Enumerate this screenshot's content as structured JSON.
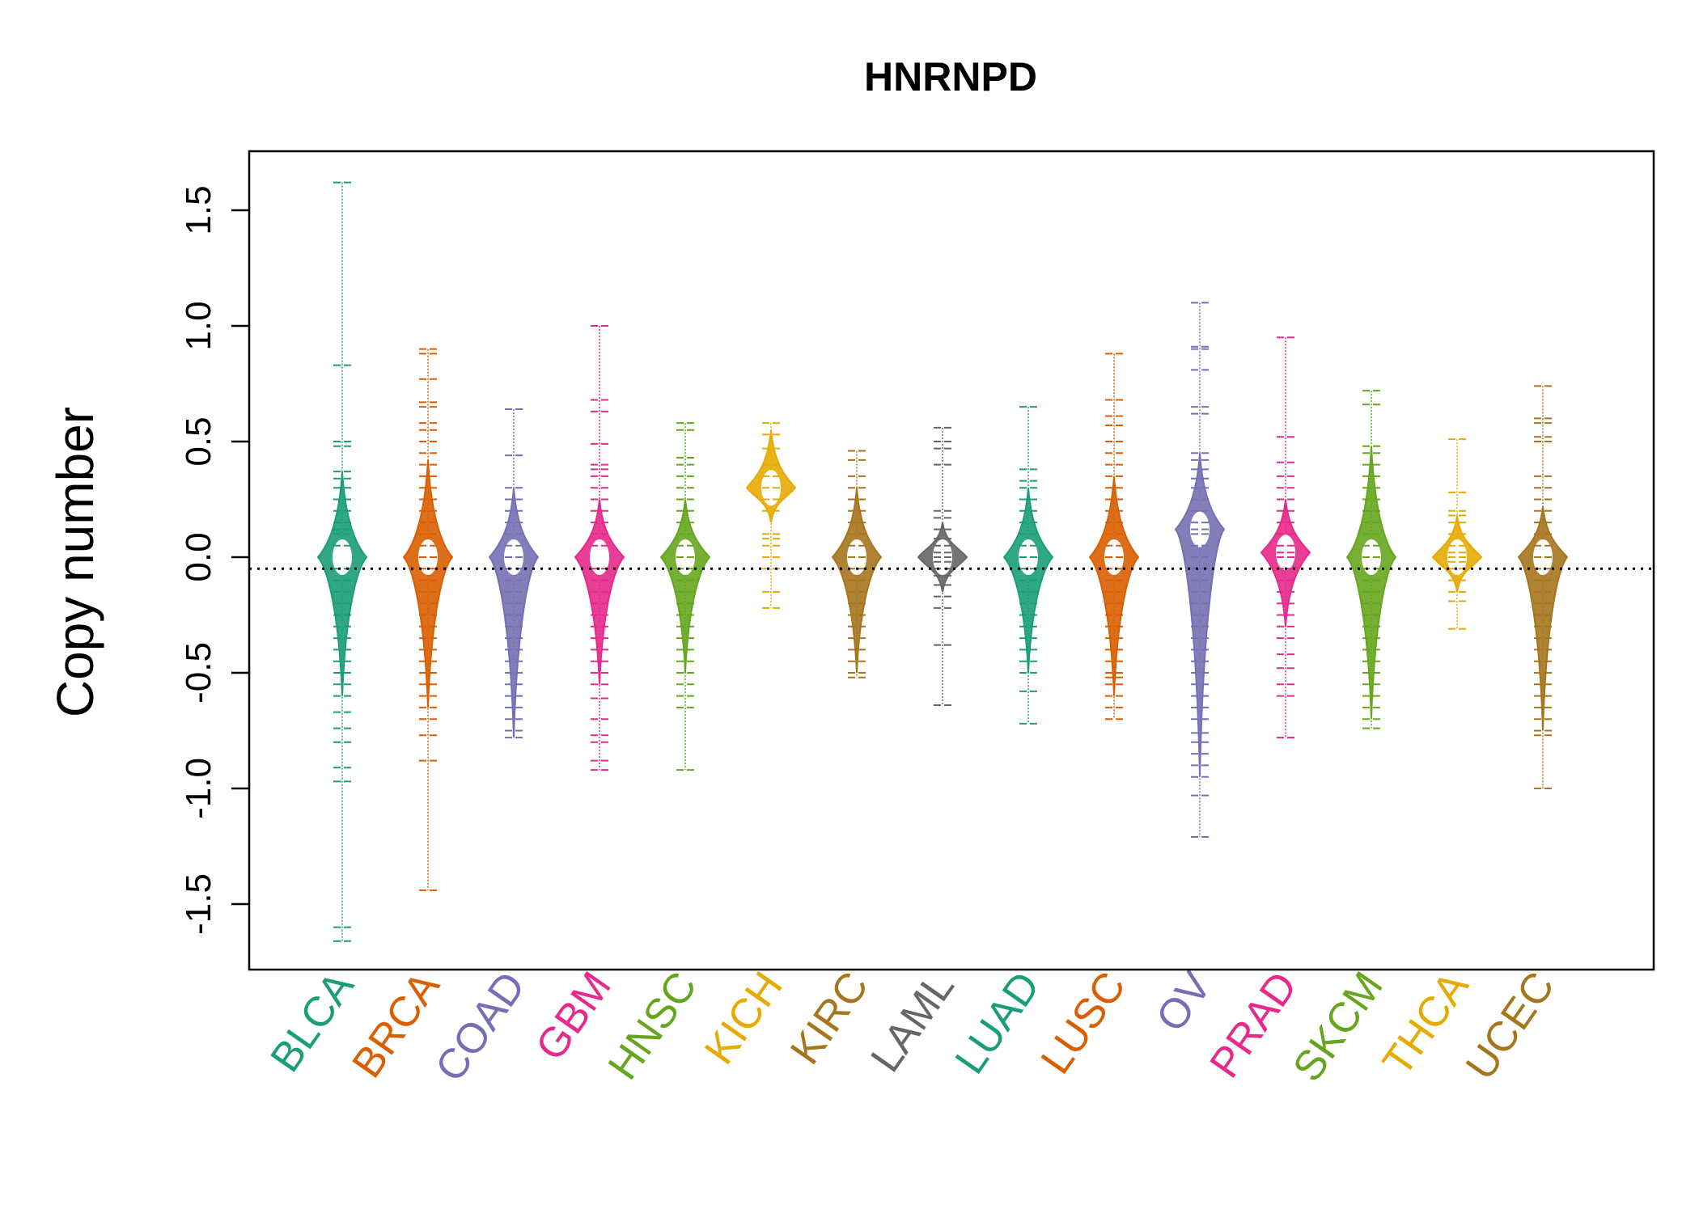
{
  "chart_data": {
    "type": "violin",
    "title": "HNRNPD",
    "xlabel": "",
    "ylabel": "Copy number",
    "ylim": [
      -1.78,
      1.75
    ],
    "yticks": [
      -1.5,
      -1.0,
      -0.5,
      0.0,
      0.5,
      1.0,
      1.5
    ],
    "ytick_labels": [
      "-1.5",
      "-1.0",
      "-0.5",
      "0.0",
      "0.5",
      "1.0",
      "1.5"
    ],
    "reference_line": -0.05,
    "grid": false,
    "legend": "none",
    "categories": [
      "BLCA",
      "BRCA",
      "COAD",
      "GBM",
      "HNSC",
      "KICH",
      "KIRC",
      "LAML",
      "LUAD",
      "LUSC",
      "OV",
      "PRAD",
      "SKCM",
      "THCA",
      "UCEC"
    ],
    "series": [
      {
        "category": "BLCA",
        "color": "#1b9e77",
        "max": 1.62,
        "min": -1.66,
        "body_top": 0.37,
        "body_bottom": -0.6,
        "center": 0.0,
        "points": [
          1.62,
          0.83,
          0.5,
          0.48,
          0.37,
          0.34,
          0.3,
          0.25,
          0.2,
          0.15,
          0.12,
          0.1,
          0.05,
          -0.05,
          -0.1,
          -0.15,
          -0.2,
          -0.25,
          -0.3,
          -0.35,
          -0.4,
          -0.45,
          -0.5,
          -0.55,
          -0.6,
          -0.67,
          -0.74,
          -0.8,
          -0.91,
          -0.97,
          -1.6,
          -1.66
        ]
      },
      {
        "category": "BRCA",
        "color": "#d95f02",
        "max": 0.9,
        "min": -1.44,
        "body_top": 0.42,
        "body_bottom": -0.65,
        "center": 0.0,
        "points": [
          0.9,
          0.88,
          0.77,
          0.67,
          0.65,
          0.58,
          0.55,
          0.5,
          0.45,
          0.4,
          0.35,
          0.3,
          0.25,
          0.2,
          0.15,
          0.1,
          0.05,
          0.0,
          -0.05,
          -0.1,
          -0.15,
          -0.2,
          -0.25,
          -0.3,
          -0.35,
          -0.4,
          -0.45,
          -0.5,
          -0.55,
          -0.6,
          -0.65,
          -0.7,
          -0.77,
          -0.88,
          -1.44
        ]
      },
      {
        "category": "COAD",
        "color": "#7570b3",
        "max": 0.64,
        "min": -0.78,
        "body_top": 0.3,
        "body_bottom": -0.78,
        "center": 0.0,
        "points": [
          0.64,
          0.44,
          0.3,
          0.25,
          0.2,
          0.15,
          0.1,
          0.05,
          0.0,
          -0.05,
          -0.1,
          -0.15,
          -0.2,
          -0.25,
          -0.3,
          -0.35,
          -0.4,
          -0.45,
          -0.5,
          -0.55,
          -0.6,
          -0.65,
          -0.7,
          -0.75,
          -0.78
        ]
      },
      {
        "category": "GBM",
        "color": "#e7298a",
        "max": 1.0,
        "min": -0.92,
        "body_top": 0.25,
        "body_bottom": -0.55,
        "center": 0.0,
        "points": [
          1.0,
          0.68,
          0.63,
          0.49,
          0.4,
          0.38,
          0.35,
          0.3,
          0.25,
          0.2,
          0.15,
          0.1,
          0.05,
          -0.05,
          -0.1,
          -0.15,
          -0.2,
          -0.25,
          -0.3,
          -0.35,
          -0.4,
          -0.45,
          -0.5,
          -0.55,
          -0.61,
          -0.7,
          -0.77,
          -0.8,
          -0.88,
          -0.92
        ]
      },
      {
        "category": "HNSC",
        "color": "#66a61e",
        "max": 0.58,
        "min": -0.92,
        "body_top": 0.25,
        "body_bottom": -0.5,
        "center": 0.0,
        "points": [
          0.58,
          0.55,
          0.43,
          0.4,
          0.35,
          0.3,
          0.25,
          0.2,
          0.15,
          0.1,
          0.05,
          0.0,
          -0.05,
          -0.1,
          -0.15,
          -0.2,
          -0.25,
          -0.3,
          -0.35,
          -0.4,
          -0.45,
          -0.5,
          -0.55,
          -0.6,
          -0.65,
          -0.92
        ]
      },
      {
        "category": "KICH",
        "color": "#e6ab02",
        "max": 0.58,
        "min": -0.22,
        "body_top": 0.55,
        "body_bottom": 0.15,
        "center": 0.3,
        "points": [
          0.58,
          0.53,
          0.47,
          0.4,
          0.35,
          0.3,
          0.25,
          0.2,
          0.1,
          0.08,
          0.05,
          0.0,
          -0.05,
          -0.15,
          -0.22
        ]
      },
      {
        "category": "KIRC",
        "color": "#a6761d",
        "max": 0.46,
        "min": -0.52,
        "body_top": 0.3,
        "body_bottom": -0.5,
        "center": 0.0,
        "points": [
          0.46,
          0.42,
          0.35,
          0.3,
          0.25,
          0.2,
          0.15,
          0.1,
          0.05,
          0.0,
          -0.05,
          -0.1,
          -0.15,
          -0.2,
          -0.25,
          -0.3,
          -0.35,
          -0.4,
          -0.45,
          -0.5,
          -0.52
        ]
      },
      {
        "category": "LAML",
        "color": "#666666",
        "max": 0.56,
        "min": -0.64,
        "body_top": 0.15,
        "body_bottom": -0.15,
        "center": 0.0,
        "points": [
          0.56,
          0.5,
          0.47,
          0.4,
          0.2,
          0.17,
          0.12,
          0.08,
          0.05,
          0.02,
          0.0,
          -0.02,
          -0.05,
          -0.08,
          -0.12,
          -0.17,
          -0.22,
          -0.38,
          -0.64
        ]
      },
      {
        "category": "LUAD",
        "color": "#1b9e77",
        "max": 0.65,
        "min": -0.72,
        "body_top": 0.3,
        "body_bottom": -0.5,
        "center": 0.0,
        "points": [
          0.65,
          0.38,
          0.33,
          0.3,
          0.25,
          0.2,
          0.15,
          0.1,
          0.05,
          0.0,
          -0.05,
          -0.1,
          -0.15,
          -0.2,
          -0.25,
          -0.3,
          -0.35,
          -0.4,
          -0.45,
          -0.5,
          -0.58,
          -0.72
        ]
      },
      {
        "category": "LUSC",
        "color": "#d95f02",
        "max": 0.88,
        "min": -0.7,
        "body_top": 0.35,
        "body_bottom": -0.6,
        "center": 0.0,
        "points": [
          0.88,
          0.68,
          0.61,
          0.57,
          0.5,
          0.45,
          0.4,
          0.35,
          0.3,
          0.25,
          0.2,
          0.15,
          0.1,
          0.05,
          0.0,
          -0.05,
          -0.1,
          -0.15,
          -0.2,
          -0.25,
          -0.3,
          -0.35,
          -0.4,
          -0.45,
          -0.5,
          -0.52,
          -0.55,
          -0.6,
          -0.65,
          -0.7
        ]
      },
      {
        "category": "OV",
        "color": "#7570b3",
        "max": 1.1,
        "min": -1.21,
        "body_top": 0.45,
        "body_bottom": -0.95,
        "center": 0.12,
        "points": [
          1.1,
          0.91,
          0.9,
          0.81,
          0.65,
          0.62,
          0.45,
          0.42,
          0.38,
          0.34,
          0.3,
          0.25,
          0.2,
          0.15,
          0.12,
          0.1,
          0.05,
          0.0,
          -0.05,
          -0.1,
          -0.15,
          -0.2,
          -0.25,
          -0.3,
          -0.35,
          -0.4,
          -0.45,
          -0.5,
          -0.55,
          -0.6,
          -0.65,
          -0.7,
          -0.76,
          -0.8,
          -0.85,
          -0.9,
          -0.95,
          -1.03,
          -1.21
        ]
      },
      {
        "category": "PRAD",
        "color": "#e7298a",
        "max": 0.95,
        "min": -0.78,
        "body_top": 0.25,
        "body_bottom": -0.3,
        "center": 0.02,
        "points": [
          0.95,
          0.52,
          0.41,
          0.35,
          0.3,
          0.25,
          0.2,
          0.15,
          0.1,
          0.05,
          0.02,
          0.0,
          -0.05,
          -0.1,
          -0.15,
          -0.2,
          -0.25,
          -0.3,
          -0.35,
          -0.42,
          -0.48,
          -0.55,
          -0.6,
          -0.78
        ]
      },
      {
        "category": "SKCM",
        "color": "#66a61e",
        "max": 0.72,
        "min": -0.74,
        "body_top": 0.48,
        "body_bottom": -0.7,
        "center": 0.0,
        "points": [
          0.72,
          0.66,
          0.48,
          0.45,
          0.4,
          0.35,
          0.3,
          0.25,
          0.2,
          0.15,
          0.1,
          0.05,
          0.0,
          -0.05,
          -0.1,
          -0.15,
          -0.2,
          -0.25,
          -0.3,
          -0.35,
          -0.4,
          -0.45,
          -0.5,
          -0.55,
          -0.6,
          -0.65,
          -0.7,
          -0.74
        ]
      },
      {
        "category": "THCA",
        "color": "#e6ab02",
        "max": 0.51,
        "min": -0.31,
        "body_top": 0.18,
        "body_bottom": -0.15,
        "center": 0.0,
        "points": [
          0.51,
          0.28,
          0.2,
          0.18,
          0.15,
          0.1,
          0.05,
          0.02,
          0.0,
          -0.02,
          -0.05,
          -0.1,
          -0.15,
          -0.19,
          -0.31
        ]
      },
      {
        "category": "UCEC",
        "color": "#a6761d",
        "max": 0.74,
        "min": -1.0,
        "body_top": 0.22,
        "body_bottom": -0.75,
        "center": 0.0,
        "points": [
          0.74,
          0.6,
          0.58,
          0.52,
          0.5,
          0.35,
          0.3,
          0.25,
          0.2,
          0.15,
          0.1,
          0.05,
          0.0,
          -0.05,
          -0.1,
          -0.15,
          -0.2,
          -0.25,
          -0.3,
          -0.35,
          -0.4,
          -0.45,
          -0.5,
          -0.55,
          -0.6,
          -0.65,
          -0.7,
          -0.75,
          -0.77,
          -1.0
        ]
      }
    ]
  }
}
